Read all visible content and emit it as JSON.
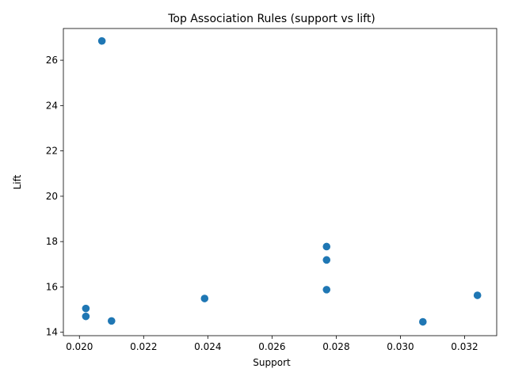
{
  "chart_data": {
    "type": "scatter",
    "title": "Top Association Rules (support vs lift)",
    "xlabel": "Support",
    "ylabel": "Lift",
    "xlim": [
      0.0195,
      0.033
    ],
    "ylim": [
      13.85,
      27.4
    ],
    "xticks": [
      0.02,
      0.022,
      0.024,
      0.026,
      0.028,
      0.03,
      0.032
    ],
    "xtick_labels": [
      "0.020",
      "0.022",
      "0.024",
      "0.026",
      "0.028",
      "0.030",
      "0.032"
    ],
    "yticks": [
      14,
      16,
      18,
      20,
      22,
      24,
      26
    ],
    "ytick_labels": [
      "14",
      "16",
      "18",
      "20",
      "22",
      "24",
      "26"
    ],
    "grid": false,
    "marker_color": "#1f77b4",
    "points": [
      {
        "x": 0.0207,
        "y": 26.85
      },
      {
        "x": 0.0277,
        "y": 17.78
      },
      {
        "x": 0.0277,
        "y": 17.19
      },
      {
        "x": 0.0277,
        "y": 15.88
      },
      {
        "x": 0.0324,
        "y": 15.63
      },
      {
        "x": 0.0239,
        "y": 15.49
      },
      {
        "x": 0.0202,
        "y": 15.05
      },
      {
        "x": 0.0202,
        "y": 14.7
      },
      {
        "x": 0.021,
        "y": 14.5
      },
      {
        "x": 0.0307,
        "y": 14.46
      }
    ]
  }
}
